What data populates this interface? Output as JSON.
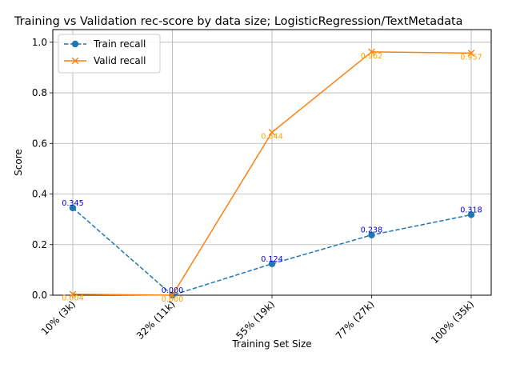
{
  "chart_data": {
    "type": "line",
    "title": "Training vs Validation rec-score by data size; LogisticRegression/TextMetadata",
    "xlabel": "Training Set Size",
    "ylabel": "Score",
    "categories": [
      "10% (3k)",
      "32% (11k)",
      "55% (19k)",
      "77% (27k)",
      "100% (35k)"
    ],
    "ylim": [
      0,
      1.05
    ],
    "yticks": [
      "0.0",
      "0.2",
      "0.4",
      "0.6",
      "0.8",
      "1.0"
    ],
    "grid": true,
    "legend_position": "upper-left",
    "series": [
      {
        "name": "Train recall",
        "values": [
          0.345,
          0.0,
          0.124,
          0.238,
          0.318
        ],
        "labels": [
          "0.345",
          "0.000",
          "0.124",
          "0.238",
          "0.318"
        ],
        "color": "#1f77b4",
        "label_color": "#0000cc",
        "linestyle": "dashed",
        "marker": "circle"
      },
      {
        "name": "Valid recall",
        "values": [
          0.004,
          0.0,
          0.644,
          0.962,
          0.957
        ],
        "labels": [
          "0.004",
          "0.000",
          "0.644",
          "0.962",
          "0.957"
        ],
        "color": "#ff7f0e",
        "label_color": "#ff9f00",
        "linestyle": "solid",
        "marker": "x"
      }
    ]
  }
}
